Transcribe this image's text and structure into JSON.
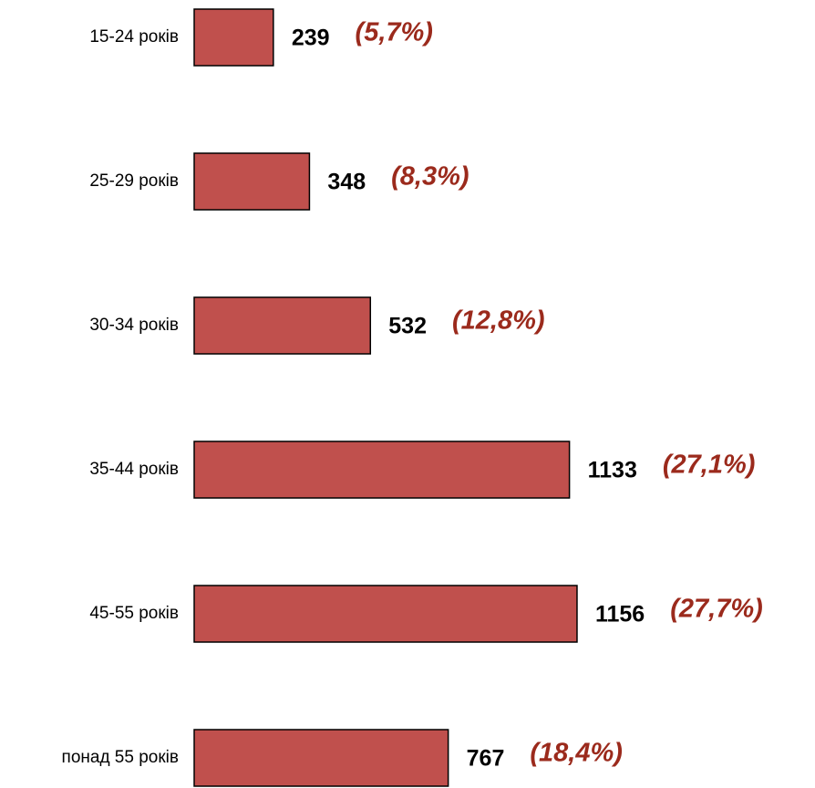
{
  "chart_data": {
    "type": "barh",
    "categories": [
      "15-24 років",
      "25-29 років",
      "30-34 років",
      "35-44 років",
      "45-55 років",
      "понад 55 років"
    ],
    "values": [
      239,
      348,
      532,
      1133,
      1156,
      767
    ],
    "annotations": [
      "(5,7%)",
      "(8,3%)",
      "(12,8%)",
      "(27,1%)",
      "(27,7%)",
      "(18,4%)"
    ],
    "color": "#c0504d"
  }
}
